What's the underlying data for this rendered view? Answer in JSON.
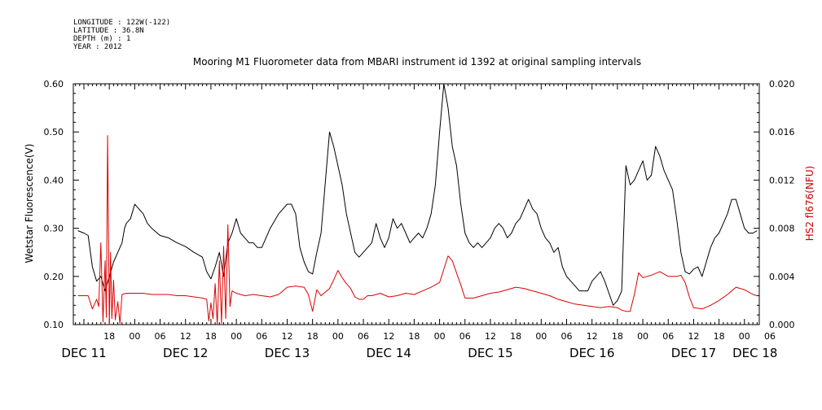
{
  "metadata_lines": [
    "LONGITUDE : 122W(-122)",
    "LATITUDE : 36.8N",
    "DEPTH (m) : 1",
    "YEAR : 2012"
  ],
  "chart_data": {
    "type": "line",
    "title": "Mooring M1 Fluorometer data from MBARI instrument id 1392 at original sampling intervals",
    "ylabel_left": "Wetstar Fluorescence(V)",
    "ylabel_right": "HS2 fl676(NFU)",
    "ylim_left": [
      0.1,
      0.6
    ],
    "ylim_right": [
      0.0,
      0.02
    ],
    "y_ticks_left": [
      "0.10",
      "0.20",
      "0.30",
      "0.40",
      "0.50",
      "0.60"
    ],
    "y_ticks_right": [
      "0.000",
      "0.004",
      "0.008",
      "0.012",
      "0.016",
      "0.020"
    ],
    "x_unit": "hours since 00:00 DEC 11 2012",
    "xlim": [
      9.5,
      171.5
    ],
    "hour_tick_labels": [
      {
        "x": 18,
        "label": "18"
      },
      {
        "x": 24,
        "label": "00"
      },
      {
        "x": 30,
        "label": "06"
      },
      {
        "x": 36,
        "label": "12"
      },
      {
        "x": 42,
        "label": "18"
      },
      {
        "x": 48,
        "label": "00"
      },
      {
        "x": 54,
        "label": "06"
      },
      {
        "x": 60,
        "label": "12"
      },
      {
        "x": 66,
        "label": "18"
      },
      {
        "x": 72,
        "label": "00"
      },
      {
        "x": 78,
        "label": "06"
      },
      {
        "x": 84,
        "label": "12"
      },
      {
        "x": 90,
        "label": "18"
      },
      {
        "x": 96,
        "label": "00"
      },
      {
        "x": 102,
        "label": "06"
      },
      {
        "x": 108,
        "label": "12"
      },
      {
        "x": 114,
        "label": "18"
      },
      {
        "x": 120,
        "label": "00"
      },
      {
        "x": 126,
        "label": "06"
      },
      {
        "x": 132,
        "label": "12"
      },
      {
        "x": 138,
        "label": "18"
      },
      {
        "x": 144,
        "label": "00"
      },
      {
        "x": 150,
        "label": "06"
      },
      {
        "x": 156,
        "label": "12"
      },
      {
        "x": 162,
        "label": "18"
      },
      {
        "x": 168,
        "label": "00"
      },
      {
        "x": 174,
        "label": "06"
      }
    ],
    "day_labels": [
      {
        "x": 12,
        "label": "DEC 11"
      },
      {
        "x": 36,
        "label": "DEC 12"
      },
      {
        "x": 60,
        "label": "DEC 13"
      },
      {
        "x": 84,
        "label": "DEC 14"
      },
      {
        "x": 108,
        "label": "DEC 15"
      },
      {
        "x": 132,
        "label": "DEC 16"
      },
      {
        "x": 156,
        "label": "DEC 17"
      },
      {
        "x": 170.5,
        "label": "DEC 18"
      }
    ],
    "series": [
      {
        "color": "#000000",
        "axis": "left",
        "x": [
          10.6,
          12,
          13,
          14,
          15,
          16,
          17,
          18,
          19,
          20,
          21,
          21.6,
          22,
          23,
          24,
          25,
          26,
          27,
          28,
          30,
          32,
          34,
          36,
          38,
          40,
          41,
          42,
          43,
          44,
          45,
          46,
          47,
          48,
          49,
          50,
          51,
          52,
          53,
          54,
          56,
          58,
          60,
          61,
          62,
          63,
          64,
          65,
          66,
          67,
          68,
          70,
          71,
          72,
          73,
          74,
          75,
          76,
          77,
          78,
          80,
          81,
          82,
          83,
          84,
          85,
          86,
          87,
          88,
          89,
          90,
          91,
          92,
          93,
          94,
          95,
          96,
          97,
          98,
          99,
          100,
          101,
          102,
          103,
          104,
          105,
          106,
          107,
          108,
          109,
          110,
          111,
          112,
          113,
          114,
          115,
          116,
          117,
          118,
          119,
          120,
          121,
          122,
          123,
          124,
          125,
          126,
          127,
          128,
          129,
          130,
          131,
          132,
          133,
          134,
          135,
          136,
          137,
          138,
          139,
          140,
          141,
          142,
          143,
          144,
          145,
          146,
          147,
          148,
          149,
          150,
          151,
          152,
          153,
          154,
          155,
          156,
          157,
          158,
          159,
          160,
          161,
          162,
          163,
          164,
          165,
          166,
          167,
          168,
          169,
          170,
          171
        ],
        "values": [
          0.295,
          0.29,
          0.285,
          0.22,
          0.19,
          0.2,
          0.17,
          0.2,
          0.23,
          0.25,
          0.27,
          0.3,
          0.31,
          0.32,
          0.35,
          0.34,
          0.33,
          0.31,
          0.3,
          0.285,
          0.28,
          0.27,
          0.262,
          0.25,
          0.24,
          0.21,
          0.195,
          0.22,
          0.25,
          0.2,
          0.27,
          0.29,
          0.32,
          0.29,
          0.28,
          0.27,
          0.27,
          0.26,
          0.26,
          0.3,
          0.33,
          0.35,
          0.35,
          0.33,
          0.26,
          0.23,
          0.21,
          0.205,
          0.25,
          0.29,
          0.5,
          0.47,
          0.43,
          0.39,
          0.33,
          0.29,
          0.25,
          0.24,
          0.25,
          0.27,
          0.31,
          0.28,
          0.26,
          0.28,
          0.32,
          0.3,
          0.31,
          0.29,
          0.27,
          0.28,
          0.29,
          0.28,
          0.3,
          0.33,
          0.39,
          0.5,
          0.6,
          0.55,
          0.47,
          0.43,
          0.35,
          0.29,
          0.27,
          0.26,
          0.27,
          0.26,
          0.27,
          0.28,
          0.3,
          0.31,
          0.3,
          0.28,
          0.29,
          0.31,
          0.32,
          0.34,
          0.36,
          0.34,
          0.33,
          0.3,
          0.28,
          0.27,
          0.25,
          0.26,
          0.22,
          0.2,
          0.19,
          0.18,
          0.17,
          0.17,
          0.17,
          0.19,
          0.2,
          0.21,
          0.19,
          0.165,
          0.14,
          0.15,
          0.17,
          0.43,
          0.39,
          0.4,
          0.42,
          0.44,
          0.4,
          0.41,
          0.47,
          0.45,
          0.42,
          0.4,
          0.38,
          0.32,
          0.25,
          0.21,
          0.205,
          0.215,
          0.22,
          0.2,
          0.23,
          0.26,
          0.28,
          0.29,
          0.31,
          0.33,
          0.36,
          0.36,
          0.33,
          0.3,
          0.29,
          0.29,
          0.295
        ]
      },
      {
        "color": "#dd0000",
        "axis": "right",
        "x": [
          10.6,
          12,
          13,
          14,
          15,
          15.5,
          16,
          16.5,
          17,
          17.3,
          17.6,
          18,
          18.3,
          18.6,
          19,
          19.4,
          20,
          20.5,
          21,
          22,
          24,
          26,
          28,
          30,
          32,
          34,
          36,
          38,
          40,
          41,
          41.5,
          42,
          42.5,
          43,
          43.5,
          44,
          44.5,
          45,
          45.5,
          46,
          46.5,
          47,
          48,
          50,
          52,
          54,
          56,
          58,
          60,
          62,
          64,
          65,
          66,
          67,
          68,
          70,
          71,
          72,
          73,
          74,
          75,
          76,
          77,
          78,
          79,
          80,
          82,
          84,
          86,
          88,
          90,
          92,
          94,
          96,
          97,
          98,
          99,
          100,
          101,
          102,
          104,
          106,
          108,
          110,
          112,
          114,
          116,
          118,
          120,
          122,
          124,
          126,
          128,
          130,
          132,
          134,
          136,
          138,
          139,
          140,
          141,
          142,
          143,
          144,
          146,
          148,
          150,
          152,
          153,
          154,
          155,
          156,
          158,
          160,
          162,
          164,
          166,
          168,
          170,
          171
        ],
        "values": [
          0.0024,
          0.0024,
          0.0024,
          0.0013,
          0.0021,
          0.0015,
          0.0068,
          0.0002,
          0.0053,
          0.0006,
          0.0157,
          0.0,
          0.006,
          0.0005,
          0.0037,
          0.0004,
          0.0019,
          0.0001,
          0.0025,
          0.0026,
          0.0026,
          0.0026,
          0.0025,
          0.0025,
          0.0025,
          0.0024,
          0.0024,
          0.0023,
          0.0022,
          0.0021,
          0.0003,
          0.0018,
          0.0005,
          0.0034,
          0.0,
          0.0053,
          0.0001,
          0.0065,
          0.0005,
          0.0083,
          0.0015,
          0.0028,
          0.0026,
          0.0024,
          0.0025,
          0.0024,
          0.0023,
          0.0025,
          0.0031,
          0.0032,
          0.0031,
          0.0025,
          0.0011,
          0.0029,
          0.0024,
          0.003,
          0.0037,
          0.0045,
          0.0039,
          0.0034,
          0.003,
          0.0023,
          0.0021,
          0.0021,
          0.0024,
          0.0024,
          0.0026,
          0.0023,
          0.0024,
          0.0026,
          0.0025,
          0.0028,
          0.0031,
          0.0035,
          0.0046,
          0.0057,
          0.0053,
          0.0043,
          0.0033,
          0.0022,
          0.0022,
          0.0024,
          0.0026,
          0.0027,
          0.0029,
          0.0031,
          0.003,
          0.0028,
          0.0026,
          0.0024,
          0.0021,
          0.0019,
          0.0017,
          0.0016,
          0.0015,
          0.0014,
          0.0015,
          0.0014,
          0.0012,
          0.0011,
          0.0011,
          0.0025,
          0.0043,
          0.0039,
          0.0041,
          0.0044,
          0.004,
          0.004,
          0.0041,
          0.0035,
          0.0023,
          0.0014,
          0.0013,
          0.0016,
          0.002,
          0.0025,
          0.0031,
          0.0029,
          0.0025,
          0.0024
        ]
      }
    ]
  }
}
